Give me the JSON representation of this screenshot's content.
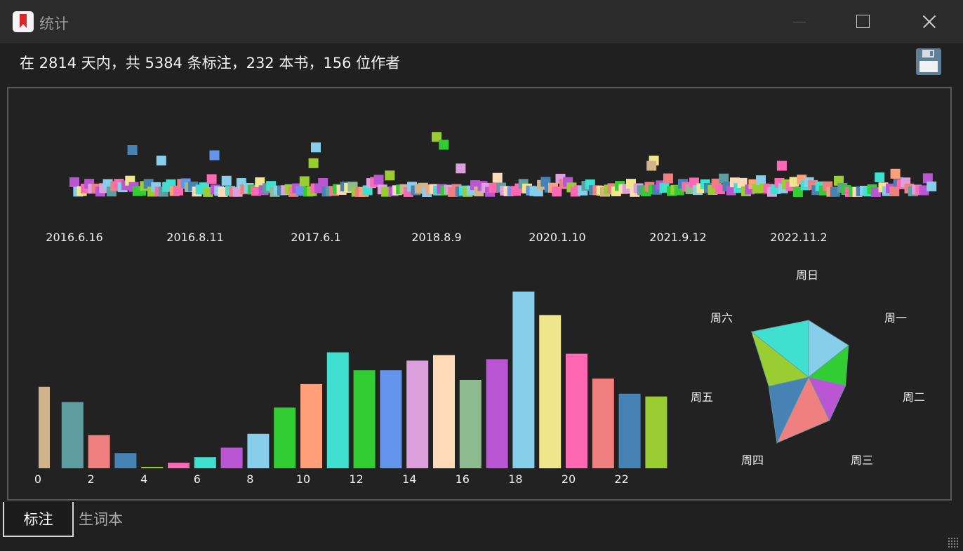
{
  "window": {
    "title": "统计",
    "icon": "bookmark-app-icon",
    "controls": [
      "minimize-icon",
      "maximize-icon",
      "close-icon"
    ]
  },
  "summary": {
    "text": "在 2814 天内，共 5384 条标注，232 本书，156 位作者",
    "save_icon": "save-floppy-icon"
  },
  "tabs": [
    {
      "label": "标注",
      "active": true
    },
    {
      "label": "生词本",
      "active": false
    }
  ],
  "palette": [
    "#d2b48c",
    "#5f9ea0",
    "#f08080",
    "#4682b4",
    "#9acd32",
    "#ff69b4",
    "#40e0d0",
    "#ba55d3",
    "#87ceeb",
    "#32cd32",
    "#ffa07a",
    "#40e0d0",
    "#32cd32",
    "#6495ed",
    "#dda0dd",
    "#ffdab9",
    "#8fbc8f",
    "#ba55d3",
    "#87ceeb",
    "#f0e68c",
    "#ff69b4",
    "#f08080",
    "#4682b4",
    "#9acd32"
  ],
  "chart_data": [
    {
      "type": "scatter",
      "title": "",
      "x_tick_labels": [
        "2016.6.16",
        "2016.8.11",
        "2017.6.1",
        "2018.8.9",
        "2020.1.10",
        "2021.9.12",
        "2022.11.2"
      ],
      "point_count": 232,
      "note": "",
      "outliers": [
        {
          "x_index": 0.48,
          "y": 8
        },
        {
          "x_index": 0.72,
          "y": 6
        },
        {
          "x_index": 1.16,
          "y": 7
        },
        {
          "x_index": 2.0,
          "y": 8.5
        },
        {
          "x_index": 1.98,
          "y": 5.5
        },
        {
          "x_index": 3.0,
          "y": 10.5
        },
        {
          "x_index": 3.06,
          "y": 9
        },
        {
          "x_index": 3.2,
          "y": 4.5
        },
        {
          "x_index": 4.8,
          "y": 6
        },
        {
          "x_index": 4.78,
          "y": 5
        },
        {
          "x_index": 5.86,
          "y": 5
        },
        {
          "x_index": 6.8,
          "y": 3.5
        }
      ]
    },
    {
      "type": "bar",
      "title": "",
      "categories": [
        0,
        1,
        2,
        3,
        4,
        5,
        6,
        7,
        8,
        9,
        10,
        11,
        12,
        13,
        14,
        15,
        16,
        17,
        18,
        19,
        20,
        21,
        22,
        23
      ],
      "x_tick_labels": [
        "0",
        "2",
        "4",
        "6",
        "8",
        "10",
        "12",
        "14",
        "16",
        "18",
        "20",
        "22"
      ],
      "values": [
        118,
        96,
        48,
        22,
        2,
        8,
        16,
        30,
        50,
        88,
        122,
        168,
        142,
        142,
        156,
        164,
        128,
        158,
        256,
        222,
        166,
        130,
        108,
        104
      ],
      "ylim": [
        0,
        260
      ]
    },
    {
      "type": "radar",
      "title": "",
      "axes": [
        "周日",
        "周一",
        "周二",
        "周三",
        "周四",
        "周五",
        "周六"
      ],
      "values": [
        0.78,
        0.7,
        0.52,
        0.66,
        1.0,
        0.56,
        1.0
      ],
      "colors": [
        "#87ceeb",
        "#32cd32",
        "#ba55d3",
        "#f08080",
        "#4682b4",
        "#9acd32",
        "#40e0d0"
      ]
    }
  ]
}
